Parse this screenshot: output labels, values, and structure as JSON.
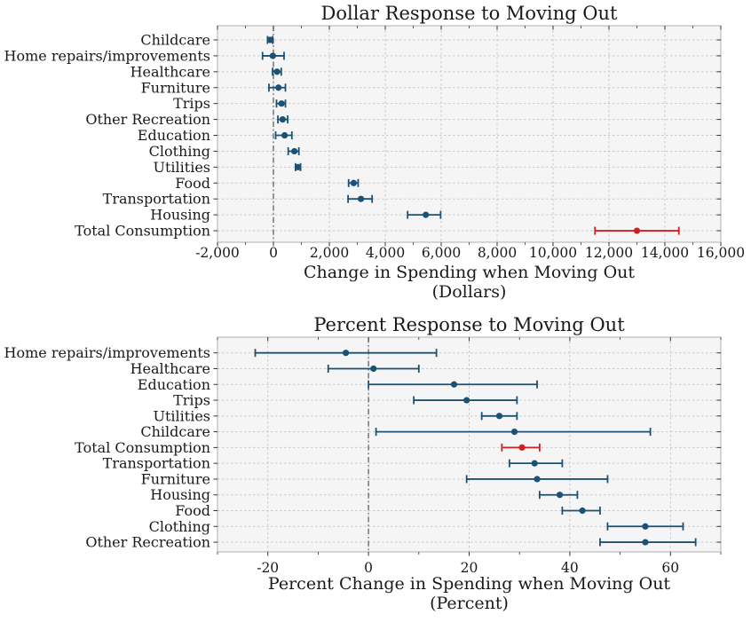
{
  "colors": {
    "series": "#1a5276",
    "highlight": "#d01f24",
    "plot_bg": "#f5f5f5",
    "grid": "#c9c9c9",
    "zero_line": "#555555",
    "spine": "#b0b0b0",
    "tick": "#333333",
    "text": "#1a1a1a"
  },
  "chart_data": [
    {
      "type": "scatter",
      "subtype": "horizontal-errorbar-dotplot",
      "title": "Dollar Response to Moving Out",
      "xlabel": "Change in Spending when Moving Out",
      "xlabel_unit": "(Dollars)",
      "xlim": [
        -2000,
        16000
      ],
      "xticks": [
        -2000,
        0,
        2000,
        4000,
        6000,
        8000,
        10000,
        12000,
        14000,
        16000
      ],
      "xtick_labels": [
        "-2,000",
        "0",
        "2,000",
        "4,000",
        "6,000",
        "8,000",
        "10,000",
        "12,000",
        "14,000",
        "16,000"
      ],
      "minor_xticks": [
        -1000,
        1000,
        3000,
        5000,
        7000,
        9000,
        11000,
        13000,
        15000
      ],
      "grid": true,
      "legend": null,
      "rows": [
        {
          "category": "Childcare",
          "value": -120,
          "ci_low": -210,
          "ci_high": -30,
          "highlight": false
        },
        {
          "category": "Home repairs/improvements",
          "value": -20,
          "ci_low": -390,
          "ci_high": 380,
          "highlight": false
        },
        {
          "category": "Healthcare",
          "value": 130,
          "ci_low": -30,
          "ci_high": 280,
          "highlight": false
        },
        {
          "category": "Furniture",
          "value": 180,
          "ci_low": -160,
          "ci_high": 430,
          "highlight": false
        },
        {
          "category": "Trips",
          "value": 290,
          "ci_low": 110,
          "ci_high": 430,
          "highlight": false
        },
        {
          "category": "Other Recreation",
          "value": 330,
          "ci_low": 160,
          "ci_high": 510,
          "highlight": false
        },
        {
          "category": "Education",
          "value": 400,
          "ci_low": 80,
          "ci_high": 660,
          "highlight": false
        },
        {
          "category": "Clothing",
          "value": 750,
          "ci_low": 530,
          "ci_high": 910,
          "highlight": false
        },
        {
          "category": "Utilities",
          "value": 880,
          "ci_low": 790,
          "ci_high": 970,
          "highlight": false
        },
        {
          "category": "Food",
          "value": 2870,
          "ci_low": 2690,
          "ci_high": 3030,
          "highlight": false
        },
        {
          "category": "Transportation",
          "value": 3130,
          "ci_low": 2670,
          "ci_high": 3530,
          "highlight": false
        },
        {
          "category": "Housing",
          "value": 5450,
          "ci_low": 4800,
          "ci_high": 5980,
          "highlight": false
        },
        {
          "category": "Total Consumption",
          "value": 13000,
          "ci_low": 11500,
          "ci_high": 14500,
          "highlight": true
        }
      ]
    },
    {
      "type": "scatter",
      "subtype": "horizontal-errorbar-dotplot",
      "title": "Percent Response to Moving Out",
      "xlabel": "Percent Change in Spending when Moving Out",
      "xlabel_unit": "(Percent)",
      "xlim": [
        -30,
        70
      ],
      "xticks": [
        -20,
        0,
        20,
        40,
        60
      ],
      "xtick_labels": [
        "-20",
        "0",
        "20",
        "40",
        "60"
      ],
      "minor_xticks": [
        -30,
        -10,
        10,
        30,
        50,
        70
      ],
      "grid": true,
      "legend": null,
      "rows": [
        {
          "category": "Home repairs/improvements",
          "value": -4.5,
          "ci_low": -22.5,
          "ci_high": 13.5,
          "highlight": false
        },
        {
          "category": "Healthcare",
          "value": 1,
          "ci_low": -8,
          "ci_high": 10,
          "highlight": false
        },
        {
          "category": "Education",
          "value": 17,
          "ci_low": 0,
          "ci_high": 33.5,
          "highlight": false
        },
        {
          "category": "Trips",
          "value": 19.5,
          "ci_low": 9,
          "ci_high": 29.5,
          "highlight": false
        },
        {
          "category": "Utilities",
          "value": 26,
          "ci_low": 22.5,
          "ci_high": 29.5,
          "highlight": false
        },
        {
          "category": "Childcare",
          "value": 29,
          "ci_low": 1.5,
          "ci_high": 56,
          "highlight": false
        },
        {
          "category": "Total Consumption",
          "value": 30.5,
          "ci_low": 26.5,
          "ci_high": 34,
          "highlight": true
        },
        {
          "category": "Transportation",
          "value": 33,
          "ci_low": 28,
          "ci_high": 38.5,
          "highlight": false
        },
        {
          "category": "Furniture",
          "value": 33.5,
          "ci_low": 19.5,
          "ci_high": 47.5,
          "highlight": false
        },
        {
          "category": "Housing",
          "value": 38,
          "ci_low": 34,
          "ci_high": 41.5,
          "highlight": false
        },
        {
          "category": "Food",
          "value": 42.5,
          "ci_low": 38.5,
          "ci_high": 46,
          "highlight": false
        },
        {
          "category": "Clothing",
          "value": 55,
          "ci_low": 47.5,
          "ci_high": 62.5,
          "highlight": false
        },
        {
          "category": "Other Recreation",
          "value": 55,
          "ci_low": 46,
          "ci_high": 65,
          "highlight": false
        }
      ]
    }
  ]
}
